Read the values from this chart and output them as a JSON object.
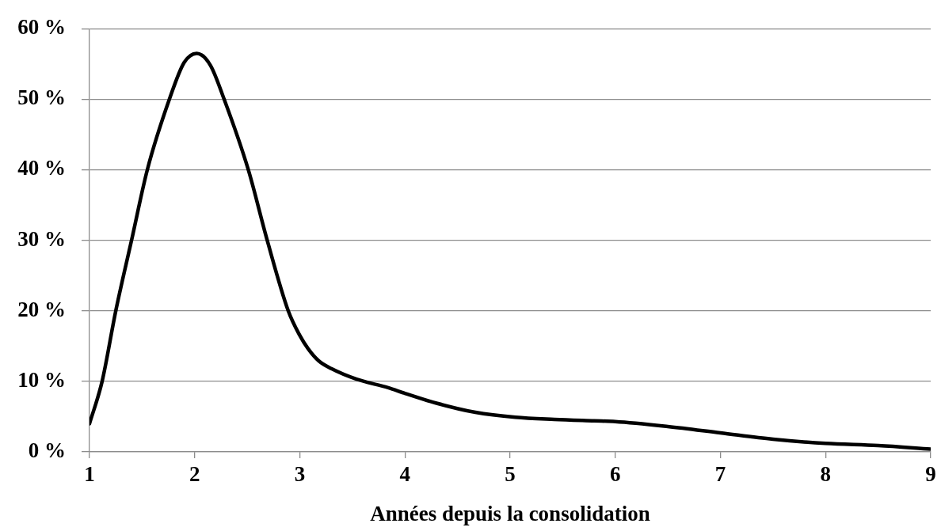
{
  "chart_data": {
    "type": "line",
    "xlabel": "Années depuis la consolidation",
    "x": [
      1,
      1.12,
      1.25,
      1.4,
      1.55,
      1.76,
      1.9,
      2.02,
      2.15,
      2.28,
      2.51,
      2.69,
      2.89,
      3.0,
      3.08,
      3.18,
      3.3,
      3.54,
      3.84,
      4.0,
      4.3,
      4.67,
      5.05,
      5.42,
      5.8,
      6.0,
      6.5,
      7.0,
      7.5,
      8.0,
      8.5,
      9.0
    ],
    "values": [
      4,
      10,
      20,
      30,
      40,
      50,
      55.2,
      56.5,
      54.8,
      50,
      40,
      30,
      20,
      16.5,
      14.6,
      12.9,
      11.8,
      10.3,
      9.1,
      8.3,
      6.9,
      5.6,
      4.9,
      4.6,
      4.4,
      4.3,
      3.6,
      2.7,
      1.8,
      1.2,
      0.9,
      0.4
    ],
    "color": "#000000",
    "xlim": [
      1,
      9
    ],
    "xticks": [
      1,
      2,
      3,
      4,
      5,
      6,
      7,
      8,
      9
    ],
    "ylim": [
      0,
      60
    ],
    "yticks": [
      {
        "value": 0,
        "label": "0 %"
      },
      {
        "value": 10,
        "label": "10 %"
      },
      {
        "value": 20,
        "label": "20 %"
      },
      {
        "value": 30,
        "label": "30 %"
      },
      {
        "value": 40,
        "label": "40 %"
      },
      {
        "value": 50,
        "label": "50 %"
      },
      {
        "value": 60,
        "label": "60 %"
      }
    ],
    "grid": "y",
    "marker": "none",
    "line_style": "solid"
  }
}
